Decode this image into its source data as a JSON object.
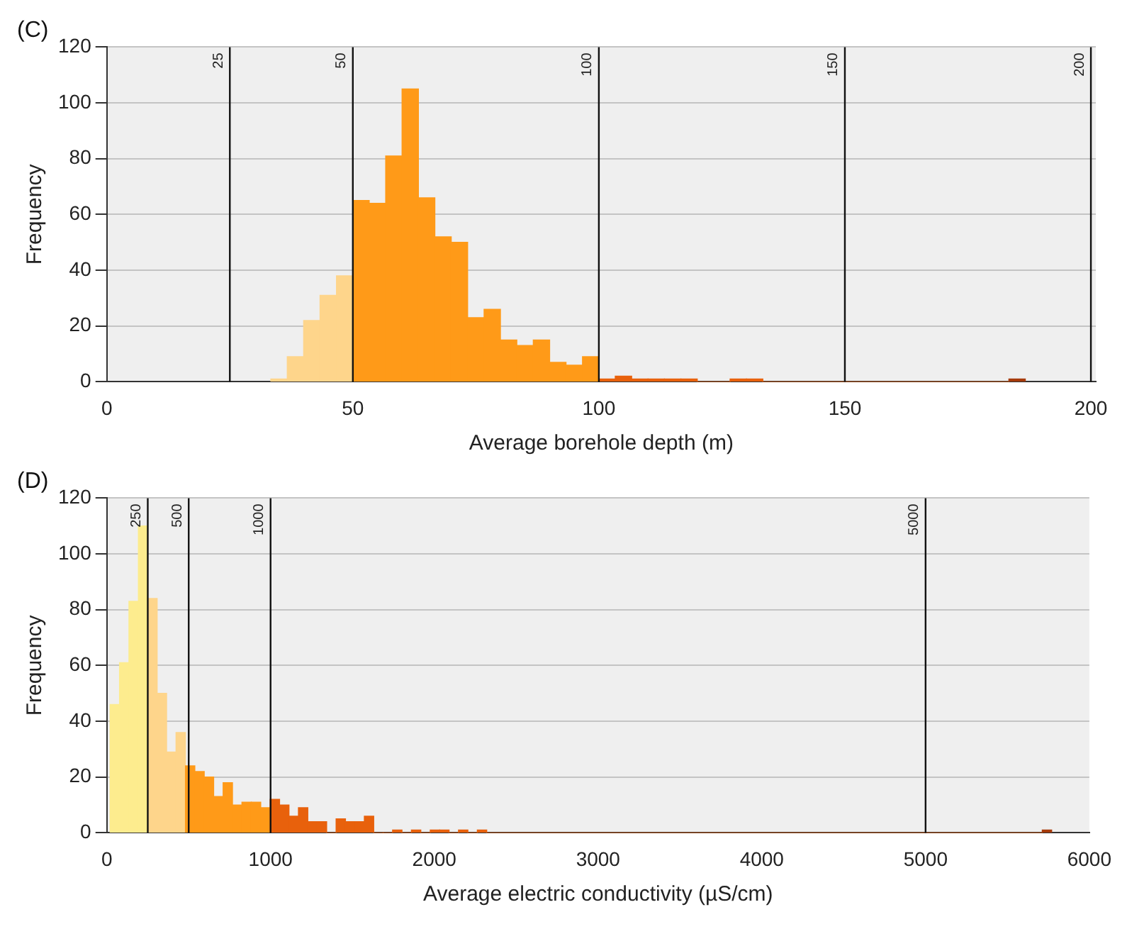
{
  "chart_data": [
    {
      "type": "histogram",
      "title": "(C)",
      "xlabel": "Average borehole depth (m)",
      "ylabel": "Frequency",
      "bins": [
        33.33,
        36.67,
        40,
        43.33,
        46.67,
        50,
        53.33,
        56.67,
        60,
        63.33,
        66.67,
        70,
        73.33,
        76.67,
        80,
        83.33,
        86.67,
        90,
        93.33,
        96.67,
        100,
        103.33,
        106.67,
        110,
        113.33,
        116.67,
        120,
        126.67,
        130,
        133.33,
        183.33,
        186.67
      ],
      "values": [
        1,
        9,
        22,
        31,
        38,
        65,
        64,
        81,
        105,
        66,
        52,
        50,
        23,
        26,
        15,
        13,
        15,
        7,
        6,
        9,
        1,
        2,
        1,
        1,
        1,
        1,
        0,
        1,
        1,
        0,
        1
      ],
      "colors": [
        "#fed58b",
        "#fed58b",
        "#fed58b",
        "#fed58b",
        "#fed58b",
        "#ff9a18",
        "#ff9a18",
        "#ff9a18",
        "#ff9a18",
        "#ff9a18",
        "#ff9a18",
        "#ff9a18",
        "#ff9a18",
        "#ff9a18",
        "#ff9a18",
        "#ff9a18",
        "#ff9a18",
        "#ff9a18",
        "#ff9a18",
        "#ff9a18",
        "#e8610c",
        "#e8610c",
        "#e8610c",
        "#e8610c",
        "#e8610c",
        "#e8610c",
        "#e8610c",
        "#e8610c",
        "#e8610c",
        "#e8610c",
        "#a63a0a"
      ],
      "xlim": [
        0,
        201
      ],
      "xticks": [
        0,
        50,
        100,
        150,
        200
      ],
      "ylim": [
        0,
        120
      ],
      "yticks": [
        0,
        20,
        40,
        60,
        80,
        100,
        120
      ],
      "grid": "y",
      "ref_lines": [
        {
          "axis": "x",
          "value": 25,
          "label": "25"
        },
        {
          "axis": "x",
          "value": 50,
          "label": "50"
        },
        {
          "axis": "x",
          "value": 100,
          "label": "100"
        },
        {
          "axis": "x",
          "value": 150,
          "label": "150"
        },
        {
          "axis": "x",
          "value": 200,
          "label": "200"
        }
      ]
    },
    {
      "type": "histogram",
      "title": "(D)",
      "xlabel": "Average electric conductivity (µS/cm)",
      "ylabel": "Frequency",
      "bins": [
        20,
        77.5,
        135,
        192.5,
        250,
        307.5,
        365,
        422.5,
        480,
        537.5,
        595,
        652.5,
        710,
        767.5,
        825,
        882.5,
        940,
        997.5,
        1055,
        1112.5,
        1170,
        1227.5,
        1285,
        1342.5,
        1400,
        1457.5,
        1515,
        1572.5,
        1630,
        1687.5,
        1745,
        1802.5,
        1860,
        1917.5,
        1975,
        2032.5,
        2090,
        2147.5,
        2205,
        2262.5,
        2320,
        5712.5,
        5770
      ],
      "values": [
        46,
        61,
        83,
        110,
        84,
        50,
        29,
        36,
        24,
        22,
        20,
        13,
        18,
        10,
        11,
        11,
        9,
        12,
        10,
        6,
        9,
        4,
        4,
        0,
        5,
        4,
        4,
        6,
        0,
        0,
        1,
        0,
        1,
        0,
        1,
        1,
        0,
        1,
        0,
        1,
        0,
        1
      ],
      "colors": [
        "#fdec8e",
        "#fdec8e",
        "#fdec8e",
        "#fdec8e",
        "#fed58b",
        "#fed58b",
        "#fed58b",
        "#fed58b",
        "#ff9a18",
        "#ff9a18",
        "#ff9a18",
        "#ff9a18",
        "#ff9a18",
        "#ff9a18",
        "#ff9a18",
        "#ff9a18",
        "#ff9a18",
        "#e8610c",
        "#e8610c",
        "#e8610c",
        "#e8610c",
        "#e8610c",
        "#e8610c",
        "#e8610c",
        "#e8610c",
        "#e8610c",
        "#e8610c",
        "#e8610c",
        "#e8610c",
        "#e8610c",
        "#e8610c",
        "#e8610c",
        "#e8610c",
        "#e8610c",
        "#e8610c",
        "#e8610c",
        "#e8610c",
        "#e8610c",
        "#e8610c",
        "#e8610c",
        "#e8610c",
        "#a63a0a"
      ],
      "xlim": [
        0,
        6000
      ],
      "xticks": [
        0,
        1000,
        2000,
        3000,
        4000,
        5000,
        6000
      ],
      "ylim": [
        0,
        120
      ],
      "yticks": [
        0,
        20,
        40,
        60,
        80,
        100,
        120
      ],
      "grid": "y",
      "ref_lines": [
        {
          "axis": "x",
          "value": 250,
          "label": "250"
        },
        {
          "axis": "x",
          "value": 500,
          "label": "500"
        },
        {
          "axis": "x",
          "value": 1000,
          "label": "1000"
        },
        {
          "axis": "x",
          "value": 5000,
          "label": "5000"
        }
      ]
    }
  ]
}
